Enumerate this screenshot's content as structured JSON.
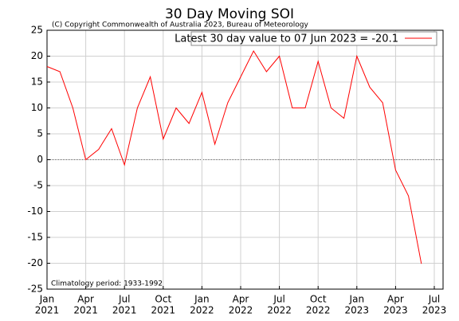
{
  "chart_data": {
    "type": "line",
    "title": "30 Day Moving SOI",
    "subtitle": "(C) Copyright Commonwealth of Australia 2023, Bureau of Meteorology",
    "annotation": "Climatology period: 1933-1992",
    "x": [
      "2021-01",
      "2021-02",
      "2021-03",
      "2021-04",
      "2021-05",
      "2021-06",
      "2021-07",
      "2021-08",
      "2021-09",
      "2021-10",
      "2021-11",
      "2021-12",
      "2022-01",
      "2022-02",
      "2022-03",
      "2022-04",
      "2022-05",
      "2022-06",
      "2022-07",
      "2022-08",
      "2022-09",
      "2022-10",
      "2022-11",
      "2022-12",
      "2023-01",
      "2023-02",
      "2023-03",
      "2023-04",
      "2023-05",
      "2023-06"
    ],
    "series": [
      {
        "name": "Latest 30 day value to 07 Jun 2023 = -20.1",
        "color": "#ff0000",
        "values": [
          18,
          17,
          10,
          0,
          2,
          6,
          -1,
          10,
          16,
          4,
          10,
          7,
          13,
          3,
          11,
          16,
          21,
          17,
          20,
          10,
          10,
          19,
          10,
          8,
          20,
          14,
          11,
          -2,
          -7,
          -20.1
        ]
      }
    ],
    "xlim": [
      "2021-01",
      "2023-07"
    ],
    "xticks": [
      {
        "value": "2021-01",
        "label": [
          "Jan",
          "2021"
        ]
      },
      {
        "value": "2021-04",
        "label": [
          "Apr",
          "2021"
        ]
      },
      {
        "value": "2021-07",
        "label": [
          "Jul",
          "2021"
        ]
      },
      {
        "value": "2021-10",
        "label": [
          "Oct",
          "2021"
        ]
      },
      {
        "value": "2022-01",
        "label": [
          "Jan",
          "2022"
        ]
      },
      {
        "value": "2022-04",
        "label": [
          "Apr",
          "2022"
        ]
      },
      {
        "value": "2022-07",
        "label": [
          "Jul",
          "2022"
        ]
      },
      {
        "value": "2022-10",
        "label": [
          "Oct",
          "2022"
        ]
      },
      {
        "value": "2023-01",
        "label": [
          "Jan",
          "2023"
        ]
      },
      {
        "value": "2023-04",
        "label": [
          "Apr",
          "2023"
        ]
      },
      {
        "value": "2023-07",
        "label": [
          "Jul",
          "2023"
        ]
      }
    ],
    "ylim": [
      -25,
      25
    ],
    "yticks": [
      -25,
      -20,
      -15,
      -10,
      -5,
      0,
      5,
      10,
      15,
      20,
      25
    ],
    "grid": true
  }
}
